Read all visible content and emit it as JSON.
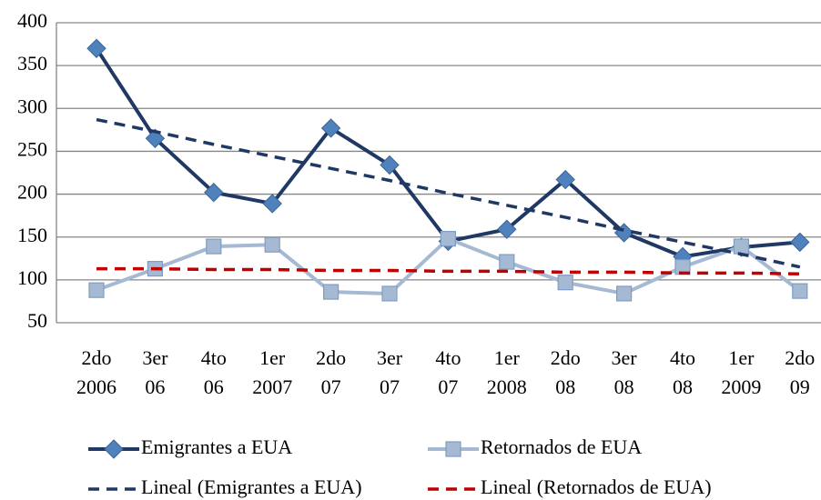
{
  "chart_data": {
    "type": "line",
    "categories": [
      [
        "2do",
        "2006"
      ],
      [
        "3er",
        "06"
      ],
      [
        "4to",
        "06"
      ],
      [
        "1er",
        "2007"
      ],
      [
        "2do",
        "07"
      ],
      [
        "3er",
        "07"
      ],
      [
        "4to",
        "07"
      ],
      [
        "1er",
        "2008"
      ],
      [
        "2do",
        "08"
      ],
      [
        "3er",
        "08"
      ],
      [
        "4to",
        "08"
      ],
      [
        "1er",
        "2009"
      ],
      [
        "2do",
        "09"
      ]
    ],
    "series": [
      {
        "name": "Emigrantes a EUA",
        "color": "#1f3864",
        "marker": "diamond",
        "marker_color": "#4f81bd",
        "dashed": false,
        "values": [
          370,
          265,
          202,
          189,
          277,
          234,
          145,
          159,
          217,
          155,
          127,
          138,
          144
        ]
      },
      {
        "name": "Retornados de EUA",
        "color": "#a6b9d3",
        "marker": "square",
        "marker_color": "#a6b9d3",
        "dashed": false,
        "values": [
          88,
          113,
          139,
          141,
          86,
          84,
          148,
          121,
          97,
          84,
          115,
          139,
          87
        ]
      },
      {
        "name": "Lineal (Emigrantes a EUA)",
        "color": "#1f3864",
        "marker": null,
        "dashed": true,
        "values": [
          287,
          273,
          258,
          244,
          230,
          216,
          201,
          187,
          173,
          158,
          144,
          130,
          115
        ]
      },
      {
        "name": "Lineal (Retornados de EUA)",
        "color": "#c00000",
        "marker": null,
        "dashed": true,
        "values": [
          113,
          113,
          112,
          112,
          111,
          111,
          110,
          110,
          109,
          109,
          108,
          108,
          107
        ]
      }
    ],
    "ylim": [
      50,
      400
    ],
    "yticks": [
      50,
      100,
      150,
      200,
      250,
      300,
      350,
      400
    ],
    "grid": true
  }
}
